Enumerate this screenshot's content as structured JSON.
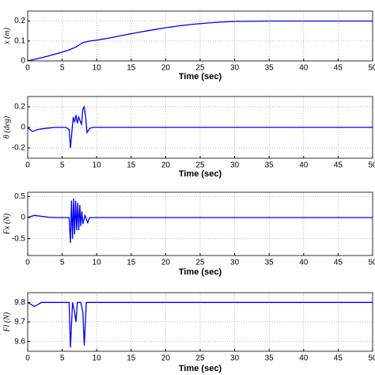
{
  "chart_data": [
    {
      "type": "line",
      "ylabel": "x (m)",
      "xlabel": "Time (sec)",
      "color": "#0000ee",
      "grid": true,
      "xlim": [
        0,
        50
      ],
      "xticks": [
        0,
        5,
        10,
        15,
        20,
        25,
        30,
        35,
        40,
        45,
        50
      ],
      "ylim": [
        0,
        0.25
      ],
      "yticks": [
        0,
        0.1,
        0.2
      ],
      "x": [
        0,
        1,
        2,
        3,
        4,
        5,
        6,
        7,
        8,
        9,
        10,
        12,
        14,
        16,
        18,
        20,
        22,
        24,
        26,
        28,
        30,
        35,
        40,
        45,
        50
      ],
      "values": [
        0,
        0.008,
        0.016,
        0.025,
        0.034,
        0.044,
        0.055,
        0.07,
        0.092,
        0.1,
        0.104,
        0.116,
        0.13,
        0.143,
        0.155,
        0.166,
        0.176,
        0.184,
        0.19,
        0.195,
        0.198,
        0.2,
        0.2,
        0.2,
        0.2
      ]
    },
    {
      "type": "line",
      "ylabel": "θ (deg)",
      "xlabel": "Time (sec)",
      "color": "#0000ee",
      "grid": true,
      "xlim": [
        0,
        50
      ],
      "xticks": [
        0,
        5,
        10,
        15,
        20,
        25,
        30,
        35,
        40,
        45,
        50
      ],
      "ylim": [
        -0.3,
        0.3
      ],
      "yticks": [
        -0.2,
        0,
        0.2
      ],
      "x": [
        0,
        0.3,
        0.7,
        1.5,
        2.5,
        4,
        5.5,
        6,
        6.2,
        6.4,
        6.6,
        6.8,
        7,
        7.2,
        7.4,
        7.6,
        7.8,
        8,
        8.2,
        8.4,
        8.6,
        8.8,
        9,
        9.5,
        10,
        15,
        20,
        30,
        40,
        50
      ],
      "values": [
        0,
        -0.02,
        -0.04,
        -0.02,
        -0.01,
        0,
        0,
        -0.02,
        -0.2,
        -0.05,
        0.1,
        0.05,
        0.12,
        0.04,
        0.1,
        0.06,
        0.03,
        0.18,
        0.2,
        0.1,
        -0.05,
        -0.03,
        -0.01,
        0,
        0,
        0,
        0,
        0,
        0,
        0
      ]
    },
    {
      "type": "line",
      "ylabel": "Fx (N)",
      "xlabel": "Time (sec)",
      "color": "#0000ee",
      "grid": true,
      "xlim": [
        0,
        50
      ],
      "xticks": [
        0,
        5,
        10,
        15,
        20,
        25,
        30,
        35,
        40,
        45,
        50
      ],
      "ylim": [
        -0.9,
        0.6
      ],
      "yticks": [
        -0.5,
        0,
        0.5
      ],
      "x": [
        0,
        0.5,
        1,
        2,
        3,
        4,
        5.5,
        6,
        6.2,
        6.35,
        6.5,
        6.65,
        6.8,
        6.95,
        7.1,
        7.25,
        7.4,
        7.55,
        7.7,
        7.85,
        8,
        8.3,
        8.7,
        9,
        10,
        20,
        30,
        40,
        50
      ],
      "values": [
        0,
        0.03,
        0.05,
        0.03,
        0.01,
        0,
        0,
        0,
        -0.6,
        0.4,
        -0.5,
        0.45,
        -0.4,
        0.4,
        -0.3,
        0.35,
        -0.3,
        0.3,
        -0.2,
        0.15,
        -0.15,
        0.05,
        -0.12,
        0,
        0,
        0,
        0,
        0,
        0
      ]
    },
    {
      "type": "line",
      "ylabel": "Fl (N)",
      "xlabel": "Time (sec)",
      "color": "#0000ee",
      "grid": true,
      "xlim": [
        0,
        50
      ],
      "xticks": [
        0,
        5,
        10,
        15,
        20,
        25,
        30,
        35,
        40,
        45,
        50
      ],
      "ylim": [
        9.55,
        9.85
      ],
      "yticks": [
        9.6,
        9.7,
        9.8
      ],
      "x": [
        0,
        0.5,
        1,
        2,
        3,
        5,
        6,
        6.2,
        6.5,
        6.8,
        7,
        7.2,
        7.4,
        7.7,
        8,
        8.2,
        8.5,
        8.8,
        10,
        20,
        30,
        40,
        50
      ],
      "values": [
        9.8,
        9.79,
        9.78,
        9.8,
        9.8,
        9.8,
        9.8,
        9.57,
        9.8,
        9.75,
        9.7,
        9.8,
        9.8,
        9.8,
        9.75,
        9.58,
        9.8,
        9.8,
        9.8,
        9.8,
        9.8,
        9.8,
        9.8
      ]
    }
  ]
}
